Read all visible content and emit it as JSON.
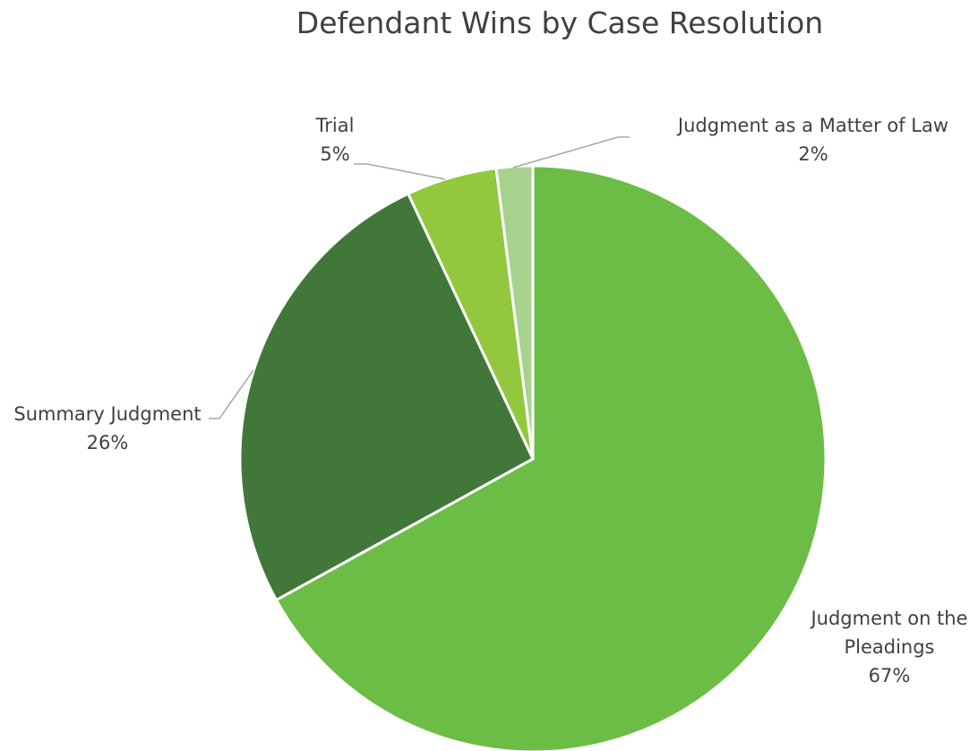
{
  "chart_data": {
    "type": "pie",
    "title": "Defendant Wins by Case Resolution",
    "categories": [
      "Judgment on the Pleadings",
      "Summary Judgment",
      "Trial",
      "Judgment as a Matter of Law"
    ],
    "values": [
      67,
      26,
      5,
      2
    ],
    "value_labels": [
      "67%",
      "26%",
      "5%",
      "2%"
    ],
    "colors": [
      "#6cbd45",
      "#41783a",
      "#93c83e",
      "#a9d18e"
    ]
  }
}
